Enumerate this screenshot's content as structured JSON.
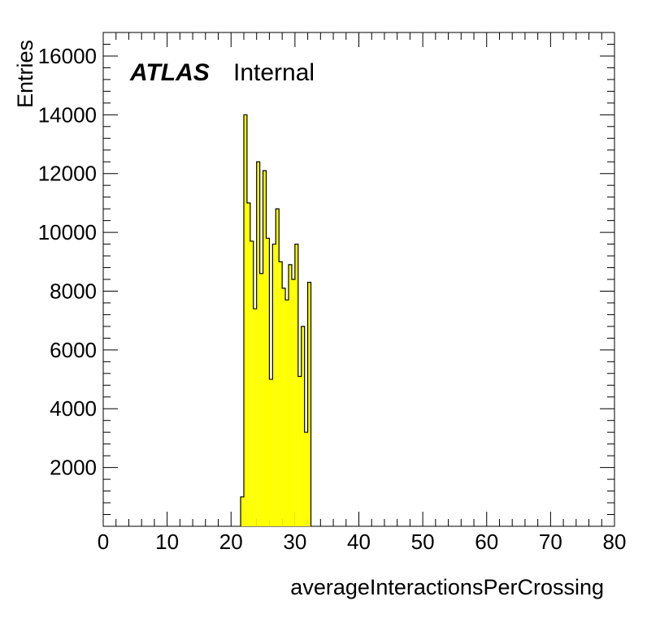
{
  "chart_data": {
    "type": "bar",
    "xlabel": "averageInteractionsPerCrossing",
    "ylabel": "Entries",
    "xlim": [
      0,
      80
    ],
    "ylim": [
      0,
      16800
    ],
    "x_ticks": [
      "0",
      "10",
      "20",
      "30",
      "40",
      "50",
      "60",
      "70",
      "80"
    ],
    "y_ticks": [
      "2000",
      "4000",
      "6000",
      "8000",
      "10000",
      "12000",
      "14000",
      "16000"
    ],
    "grid": false,
    "bin_width": 0.5,
    "bins": [
      {
        "x": 21.5,
        "y": 1000
      },
      {
        "x": 22.0,
        "y": 14000
      },
      {
        "x": 22.5,
        "y": 11000
      },
      {
        "x": 23.0,
        "y": 9700
      },
      {
        "x": 23.5,
        "y": 7400
      },
      {
        "x": 24.0,
        "y": 12400
      },
      {
        "x": 24.5,
        "y": 8600
      },
      {
        "x": 25.0,
        "y": 12100
      },
      {
        "x": 25.5,
        "y": 9800
      },
      {
        "x": 26.0,
        "y": 5000
      },
      {
        "x": 26.5,
        "y": 9600
      },
      {
        "x": 27.0,
        "y": 10800
      },
      {
        "x": 27.5,
        "y": 9000
      },
      {
        "x": 28.0,
        "y": 8100
      },
      {
        "x": 28.5,
        "y": 7700
      },
      {
        "x": 29.0,
        "y": 8900
      },
      {
        "x": 29.5,
        "y": 8400
      },
      {
        "x": 30.0,
        "y": 9600
      },
      {
        "x": 30.5,
        "y": 5100
      },
      {
        "x": 31.0,
        "y": 6800
      },
      {
        "x": 31.5,
        "y": 3200
      },
      {
        "x": 32.0,
        "y": 8300
      }
    ],
    "fill_color": "#ffff00",
    "line_color": "#000000",
    "label": {
      "brand": "ATLAS",
      "status": "Internal"
    }
  }
}
